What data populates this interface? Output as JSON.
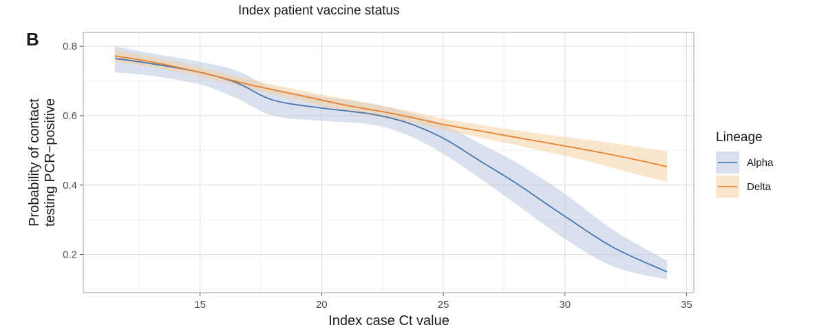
{
  "chart_data": {
    "type": "line",
    "title": "Index patient vaccine status",
    "panel_label": "B",
    "xlabel": "Index case Ct value",
    "ylabel": [
      "Probability of contact",
      "testing PCR−positive"
    ],
    "xlim": [
      10.2,
      35.3
    ],
    "ylim": [
      0.09,
      0.84
    ],
    "x_ticks": [
      15,
      20,
      25,
      30,
      35
    ],
    "y_ticks": [
      0.2,
      0.4,
      0.6,
      0.8
    ],
    "grid": true,
    "legend": {
      "title": "Lineage",
      "position": "right"
    },
    "series": [
      {
        "name": "Alpha",
        "color": "#4a76ad",
        "band_color": "#b8c8de",
        "x": [
          11.5,
          13,
          15,
          16.5,
          18,
          20,
          22,
          23.5,
          25,
          26.5,
          28,
          30,
          32,
          34.2
        ],
        "y": [
          0.765,
          0.75,
          0.725,
          0.695,
          0.645,
          0.622,
          0.605,
          0.58,
          0.535,
          0.47,
          0.405,
          0.31,
          0.22,
          0.15
        ],
        "lower": [
          0.725,
          0.715,
          0.69,
          0.65,
          0.6,
          0.585,
          0.575,
          0.545,
          0.49,
          0.42,
          0.345,
          0.245,
          0.165,
          0.128
        ],
        "upper": [
          0.8,
          0.78,
          0.755,
          0.73,
          0.68,
          0.655,
          0.635,
          0.61,
          0.575,
          0.52,
          0.465,
          0.375,
          0.27,
          0.182
        ]
      },
      {
        "name": "Delta",
        "color": "#e8822e",
        "band_color": "#f6cfa4",
        "x": [
          11.5,
          13,
          15,
          17,
          19,
          21,
          23,
          25,
          27,
          29,
          31,
          33,
          34.2
        ],
        "y": [
          0.772,
          0.755,
          0.725,
          0.69,
          0.66,
          0.63,
          0.605,
          0.575,
          0.55,
          0.525,
          0.5,
          0.472,
          0.453
        ],
        "lower": [
          0.755,
          0.74,
          0.712,
          0.678,
          0.645,
          0.612,
          0.59,
          0.56,
          0.53,
          0.5,
          0.468,
          0.43,
          0.41
        ],
        "upper": [
          0.79,
          0.77,
          0.74,
          0.705,
          0.675,
          0.648,
          0.622,
          0.592,
          0.568,
          0.548,
          0.53,
          0.51,
          0.497
        ]
      }
    ]
  }
}
